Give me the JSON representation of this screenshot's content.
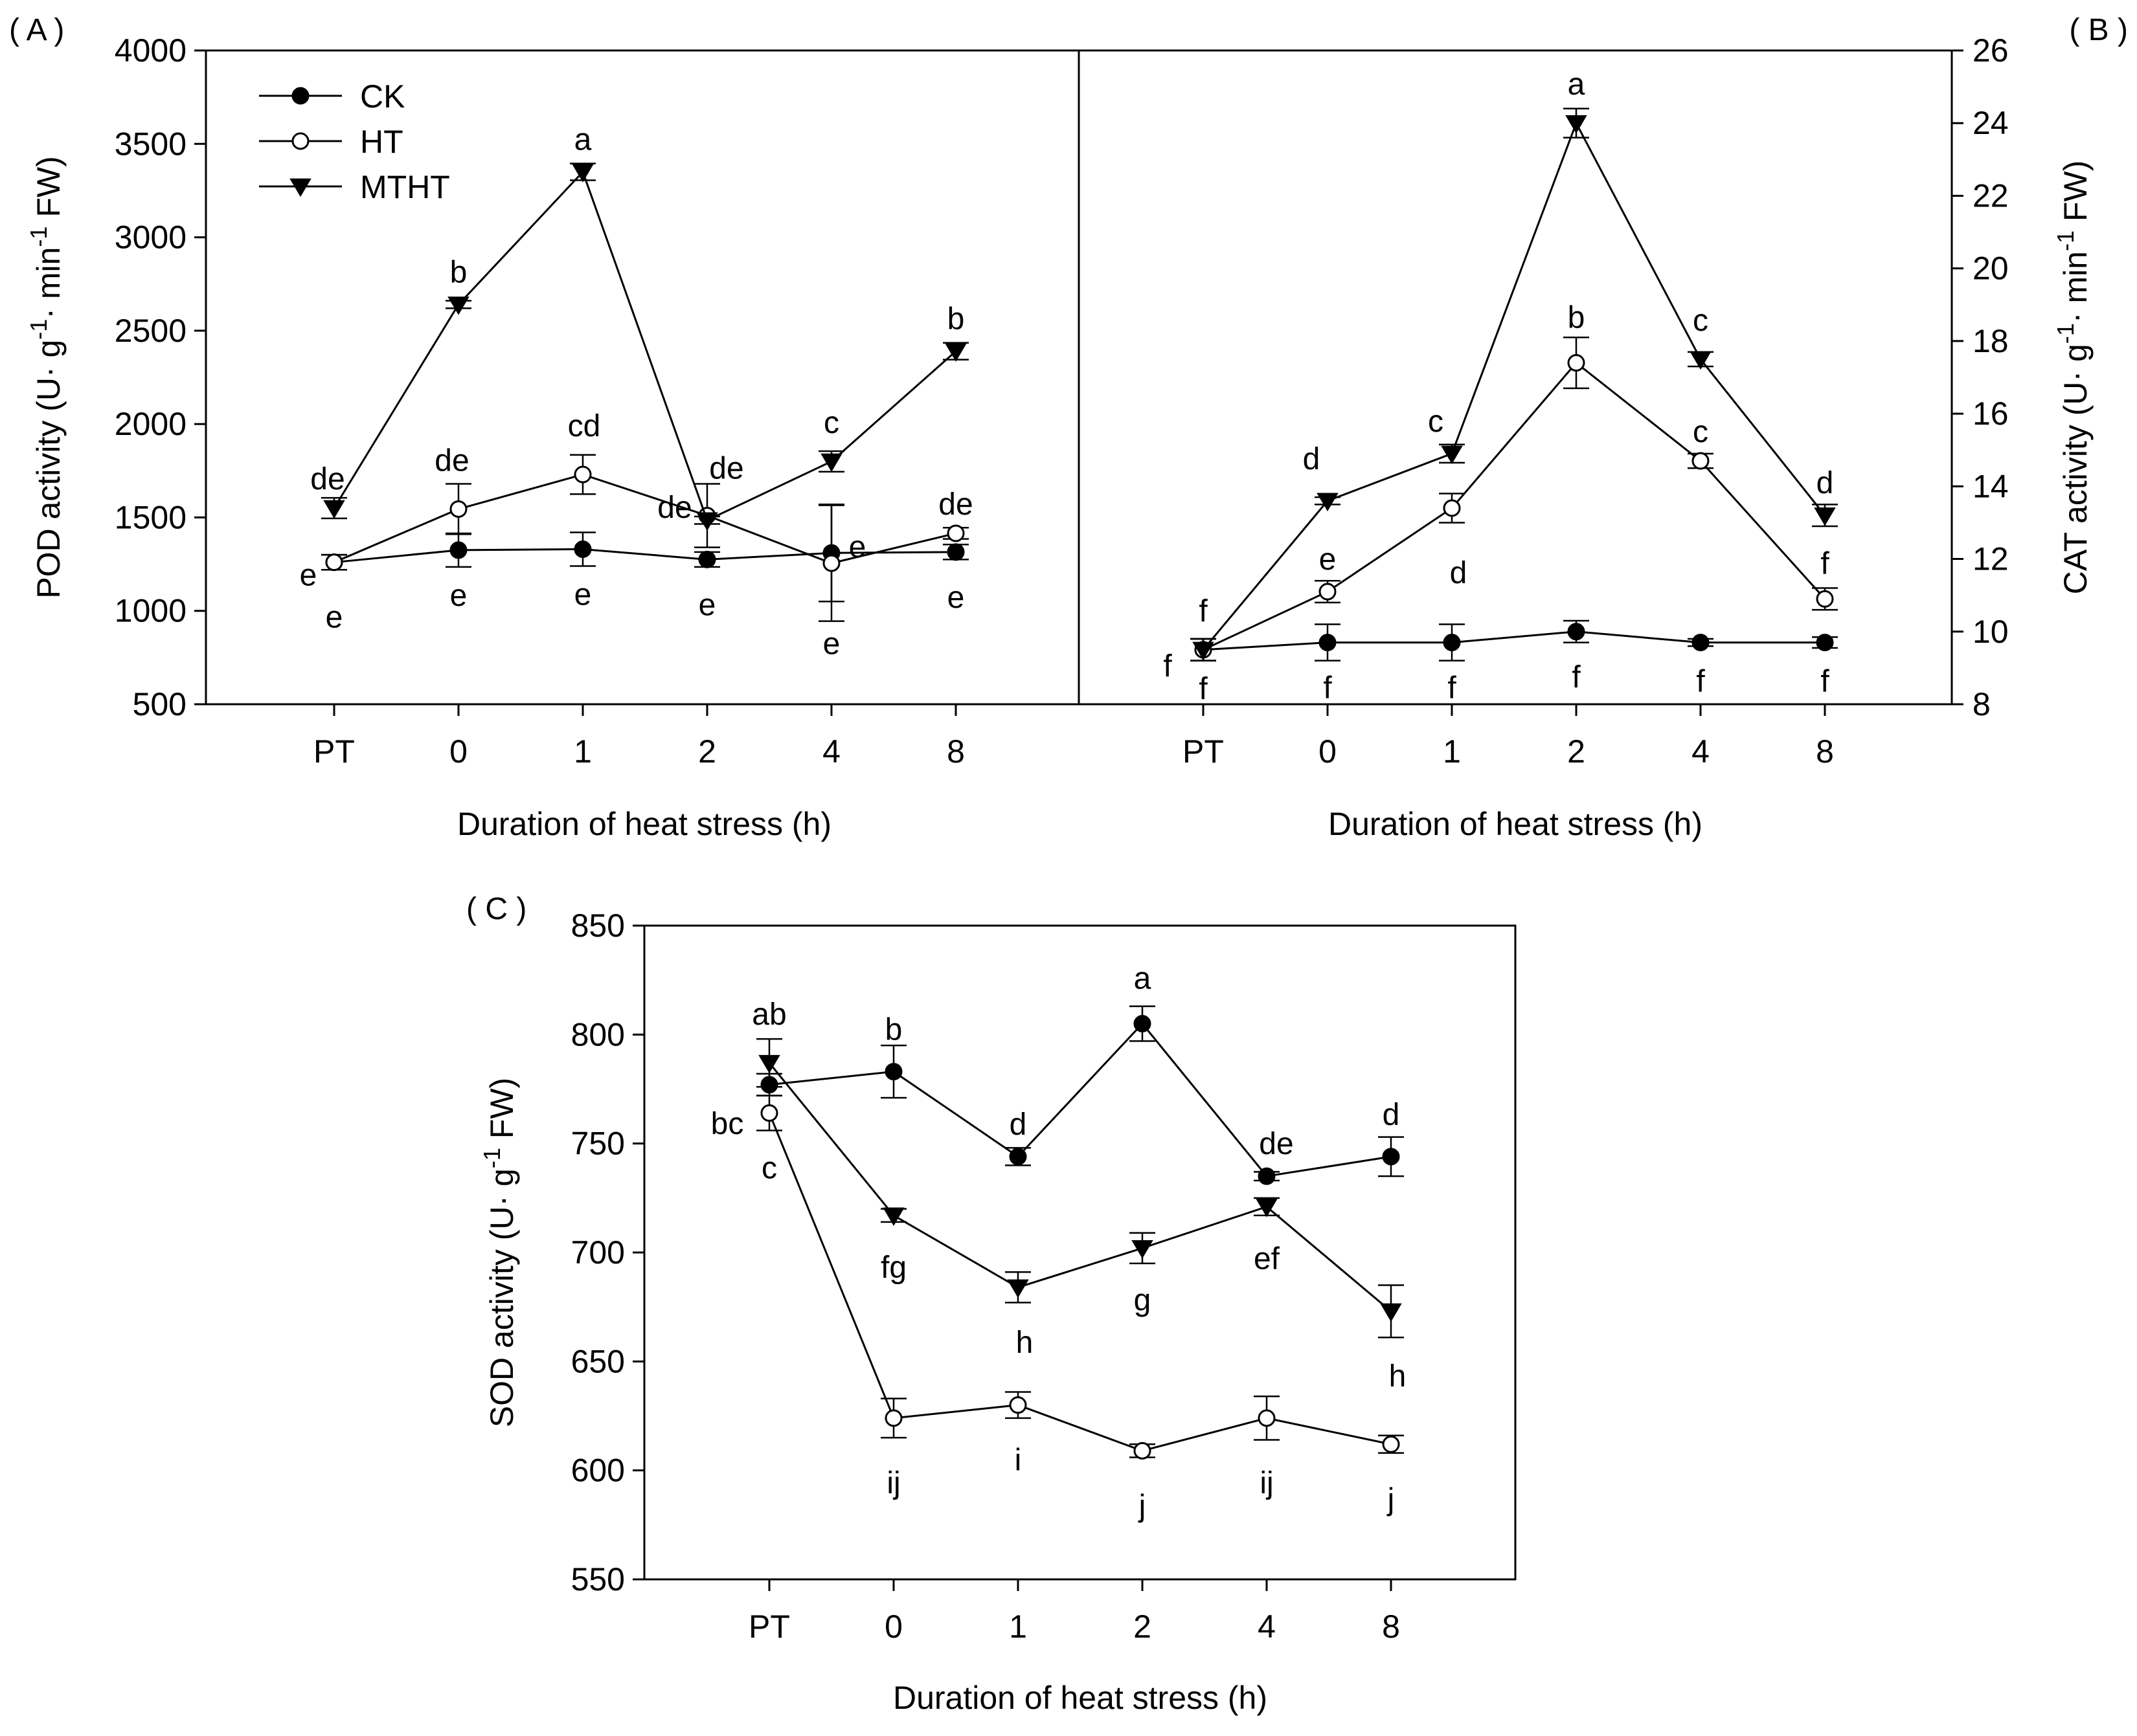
{
  "chart_data": [
    {
      "id": "A",
      "type": "line",
      "panel_label": "( A )",
      "title": "",
      "xlabel": "Duration of heat stress (h)",
      "ylabel_parts": [
        "POD activity (U· g",
        "-1",
        "·  min",
        "-1",
        " FW)"
      ],
      "categories": [
        "PT",
        "0",
        "1",
        "2",
        "4",
        "8"
      ],
      "ylim": [
        500,
        4000
      ],
      "yticks": [
        "500",
        "1000",
        "1500",
        "2000",
        "2500",
        "3000",
        "3500",
        "4000"
      ],
      "y_axis_side": "left",
      "legend_position": "top-left",
      "series": [
        {
          "name": "CK",
          "marker": "circle-filled",
          "values": [
            1260,
            1325,
            1330,
            1275,
            1310,
            1315
          ],
          "errors": [
            40,
            90,
            90,
            40,
            260,
            40
          ],
          "labels": [
            "e",
            "e",
            "e",
            "e",
            "e",
            "e"
          ]
        },
        {
          "name": "HT",
          "marker": "circle-open",
          "values": [
            1260,
            1545,
            1730,
            1510,
            1255,
            1415
          ],
          "errors": [
            40,
            135,
            105,
            170,
            310,
            30
          ],
          "labels": [
            "e",
            "de",
            "cd",
            "de",
            "e",
            "de"
          ]
        },
        {
          "name": "MTHT",
          "marker": "triangle-down",
          "values": [
            1550,
            2640,
            3350,
            1485,
            1800,
            2390
          ],
          "errors": [
            55,
            20,
            45,
            20,
            55,
            45
          ],
          "labels": [
            "de",
            "b",
            "a",
            "de",
            "c",
            "b"
          ]
        }
      ]
    },
    {
      "id": "B",
      "type": "line",
      "panel_label": "( B )",
      "title": "",
      "xlabel": "Duration of heat stress (h)",
      "ylabel_parts": [
        "CAT activity (U· g",
        "-1",
        "·  min",
        "-1",
        " FW)"
      ],
      "categories": [
        "PT",
        "0",
        "1",
        "2",
        "4",
        "8"
      ],
      "ylim": [
        8,
        26
      ],
      "yticks": [
        "8",
        "10",
        "12",
        "14",
        "16",
        "18",
        "20",
        "22",
        "24",
        "26"
      ],
      "y_axis_side": "right",
      "series": [
        {
          "name": "CK",
          "marker": "circle-filled",
          "values": [
            9.5,
            9.7,
            9.7,
            10.0,
            9.7,
            9.7
          ],
          "errors": [
            0.3,
            0.5,
            0.5,
            0.3,
            0.1,
            0.15
          ],
          "labels": [
            "f",
            "f",
            "f",
            "f",
            "f",
            "f"
          ]
        },
        {
          "name": "HT",
          "marker": "circle-open",
          "values": [
            9.5,
            11.1,
            13.4,
            17.4,
            14.7,
            10.9
          ],
          "errors": [
            0.3,
            0.3,
            0.4,
            0.7,
            0.2,
            0.3
          ],
          "labels": [
            "f",
            "e",
            "d",
            "b",
            "c",
            "f"
          ]
        },
        {
          "name": "MTHT",
          "marker": "triangle-down",
          "values": [
            9.5,
            13.6,
            14.9,
            24.0,
            17.5,
            13.2
          ],
          "errors": [
            0.3,
            0.1,
            0.25,
            0.4,
            0.2,
            0.3
          ],
          "labels": [
            "f",
            "d",
            "c",
            "a",
            "c",
            "d"
          ]
        }
      ]
    },
    {
      "id": "C",
      "type": "line",
      "panel_label": "( C )",
      "title": "",
      "xlabel": "Duration of heat stress (h)",
      "ylabel_parts": [
        "SOD activity  (U· g",
        "-1",
        " FW)"
      ],
      "categories": [
        "PT",
        "0",
        "1",
        "2",
        "4",
        "8"
      ],
      "ylim": [
        550,
        850
      ],
      "yticks": [
        "550",
        "600",
        "650",
        "700",
        "750",
        "800",
        "850"
      ],
      "y_axis_side": "left",
      "series": [
        {
          "name": "CK",
          "marker": "circle-filled",
          "values": [
            777,
            783,
            744,
            805,
            735,
            744
          ],
          "errors": [
            5,
            12,
            4,
            8,
            2,
            9
          ],
          "labels": [
            "bc",
            "b",
            "d",
            "a",
            "de",
            "d"
          ]
        },
        {
          "name": "HT",
          "marker": "circle-open",
          "values": [
            764,
            624,
            630,
            609,
            624,
            612
          ],
          "errors": [
            8,
            9,
            6,
            3,
            10,
            4
          ],
          "labels": [
            "c",
            "ij",
            "i",
            "j",
            "ij",
            "j"
          ]
        },
        {
          "name": "MTHT",
          "marker": "triangle-down",
          "values": [
            787,
            717,
            684,
            702,
            721,
            673
          ],
          "errors": [
            11,
            3,
            7,
            7,
            4,
            12
          ],
          "labels": [
            "ab",
            "fg",
            "h",
            "g",
            "ef",
            "h"
          ]
        }
      ]
    }
  ]
}
